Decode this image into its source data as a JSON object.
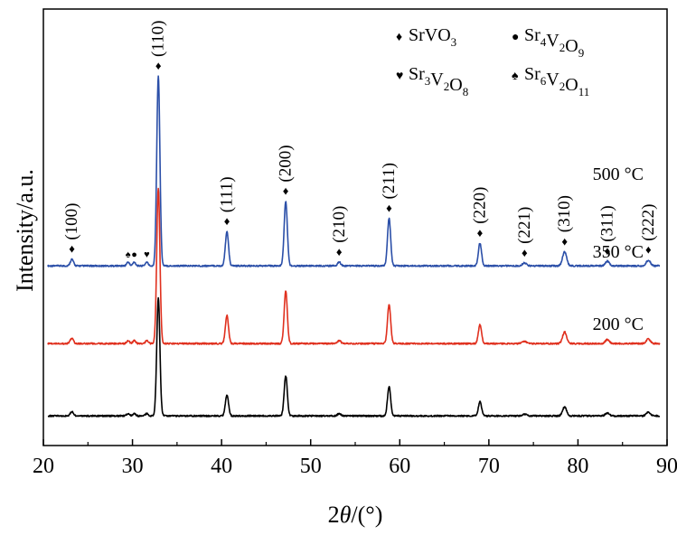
{
  "chart_data": {
    "type": "line",
    "xlabel_prefix": "2",
    "xlabel_symbol": "θ",
    "xlabel_suffix": "/(°)",
    "ylabel": "Intensity/a.u.",
    "xlim": [
      20,
      90
    ],
    "xticks": [
      20,
      30,
      40,
      50,
      60,
      70,
      80,
      90
    ],
    "legend": [
      {
        "marker": "♦",
        "base": "SrVO",
        "subs": [
          [
            "",
            "3"
          ]
        ]
      },
      {
        "marker": "●",
        "base": "",
        "subs": [
          [
            "Sr",
            "4"
          ],
          [
            "V",
            "2"
          ],
          [
            "O",
            "9"
          ]
        ]
      },
      {
        "marker": "♥",
        "base": "",
        "subs": [
          [
            "Sr",
            "3"
          ],
          [
            "V",
            "2"
          ],
          [
            "O",
            "8"
          ]
        ]
      },
      {
        "marker": "♠",
        "base": "",
        "subs": [
          [
            "Sr",
            "6"
          ],
          [
            "V",
            "2"
          ],
          [
            "O",
            "11"
          ]
        ]
      }
    ],
    "peaks": [
      {
        "x": 23.2,
        "label": "(100)",
        "rel": 0.035
      },
      {
        "x": 32.9,
        "label": "(110)",
        "rel": 1.0
      },
      {
        "x": 40.6,
        "label": "(111)",
        "rel": 0.18
      },
      {
        "x": 47.2,
        "label": "(200)",
        "rel": 0.34
      },
      {
        "x": 53.2,
        "label": "(210)",
        "rel": 0.02
      },
      {
        "x": 58.8,
        "label": "(211)",
        "rel": 0.25
      },
      {
        "x": 69.0,
        "label": "(220)",
        "rel": 0.12
      },
      {
        "x": 74.0,
        "label": "(221)",
        "rel": 0.015
      },
      {
        "x": 78.5,
        "label": "(310)",
        "rel": 0.075
      },
      {
        "x": 83.3,
        "label": "(311)",
        "rel": 0.025
      },
      {
        "x": 87.9,
        "label": "(222)",
        "rel": 0.03
      }
    ],
    "impurity_markers": [
      {
        "x": 29.5,
        "symbol": "♠"
      },
      {
        "x": 30.2,
        "symbol": "●"
      },
      {
        "x": 31.6,
        "symbol": "♥"
      }
    ],
    "series": [
      {
        "name": "500 °C",
        "color": "#2b4fa8",
        "scale": 1.0
      },
      {
        "name": "350 °C",
        "color": "#e0301e",
        "scale": 0.82
      },
      {
        "name": "200 °C",
        "color": "#000000",
        "scale": 0.62
      }
    ]
  }
}
